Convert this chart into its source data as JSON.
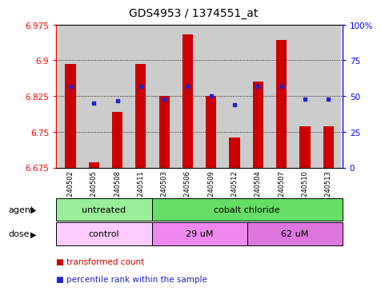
{
  "title": "GDS4953 / 1374551_at",
  "samples": [
    "GSM1240502",
    "GSM1240505",
    "GSM1240508",
    "GSM1240511",
    "GSM1240503",
    "GSM1240506",
    "GSM1240509",
    "GSM1240512",
    "GSM1240504",
    "GSM1240507",
    "GSM1240510",
    "GSM1240513"
  ],
  "bar_values": [
    6.893,
    6.686,
    6.792,
    6.893,
    6.826,
    6.955,
    6.826,
    6.738,
    6.856,
    6.942,
    6.762,
    6.762
  ],
  "percentile_values": [
    57,
    45,
    47,
    57,
    48,
    57,
    50,
    44,
    57,
    57,
    48,
    48
  ],
  "y_min": 6.675,
  "y_max": 6.975,
  "y_ticks": [
    6.675,
    6.75,
    6.825,
    6.9,
    6.975
  ],
  "y_tick_labels": [
    "6.675",
    "6.75",
    "6.825",
    "6.9",
    "6.975"
  ],
  "right_y_ticks": [
    0,
    25,
    50,
    75,
    100
  ],
  "right_y_labels": [
    "0",
    "25",
    "50",
    "75",
    "100%"
  ],
  "bar_color": "#cc0000",
  "dot_color": "#2222cc",
  "col_bg_color": "#cccccc",
  "agent_groups": [
    {
      "label": "untreated",
      "start": 0,
      "end": 4,
      "color": "#99ee99"
    },
    {
      "label": "cobalt chloride",
      "start": 4,
      "end": 12,
      "color": "#66dd66"
    }
  ],
  "dose_groups": [
    {
      "label": "control",
      "start": 0,
      "end": 4,
      "color": "#ffccff"
    },
    {
      "label": "29 uM",
      "start": 4,
      "end": 8,
      "color": "#ee88ee"
    },
    {
      "label": "62 uM",
      "start": 8,
      "end": 12,
      "color": "#dd77dd"
    }
  ],
  "legend_items": [
    {
      "label": "transformed count",
      "color": "#cc0000"
    },
    {
      "label": "percentile rank within the sample",
      "color": "#2222cc"
    }
  ],
  "agent_label": "agent",
  "dose_label": "dose",
  "title_fontsize": 10,
  "tick_fontsize": 7.5,
  "sample_fontsize": 6,
  "label_fontsize": 8
}
